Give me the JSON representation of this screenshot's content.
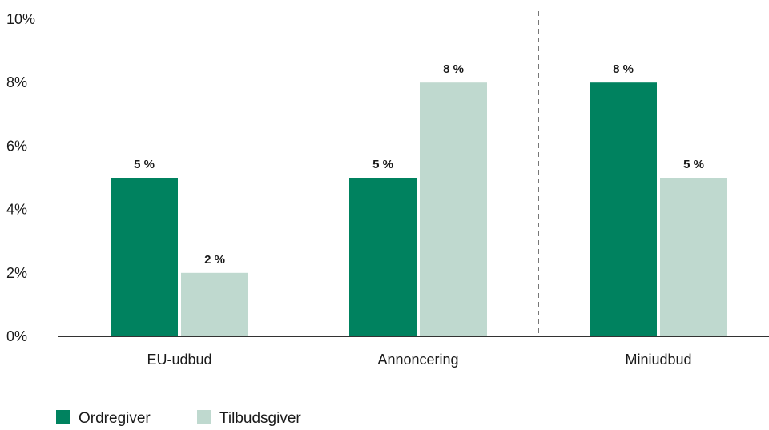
{
  "chart_data": {
    "type": "bar",
    "categories": [
      "EU-udbud",
      "Annoncering",
      "Miniudbud"
    ],
    "series": [
      {
        "name": "Ordregiver",
        "values": [
          5,
          5,
          8
        ],
        "labels": [
          "5 %",
          "5 %",
          "8 %"
        ]
      },
      {
        "name": "Tilbudsgiver",
        "values": [
          2,
          8,
          5
        ],
        "labels": [
          "2 %",
          "8 %",
          "5 %"
        ]
      }
    ],
    "ylim": [
      0,
      10
    ],
    "yticks": [
      0,
      2,
      4,
      6,
      8,
      10
    ],
    "ytick_labels": [
      "0%",
      "2%",
      "4%",
      "6%",
      "8%",
      "10%"
    ],
    "grid": false,
    "separator_before_category": 2,
    "legend_position": "bottom-left"
  },
  "colors": {
    "Ordregiver": "#00825f",
    "Tilbudsgiver": "#bfd9cf",
    "axis": "#333333",
    "separator": "#777777"
  }
}
